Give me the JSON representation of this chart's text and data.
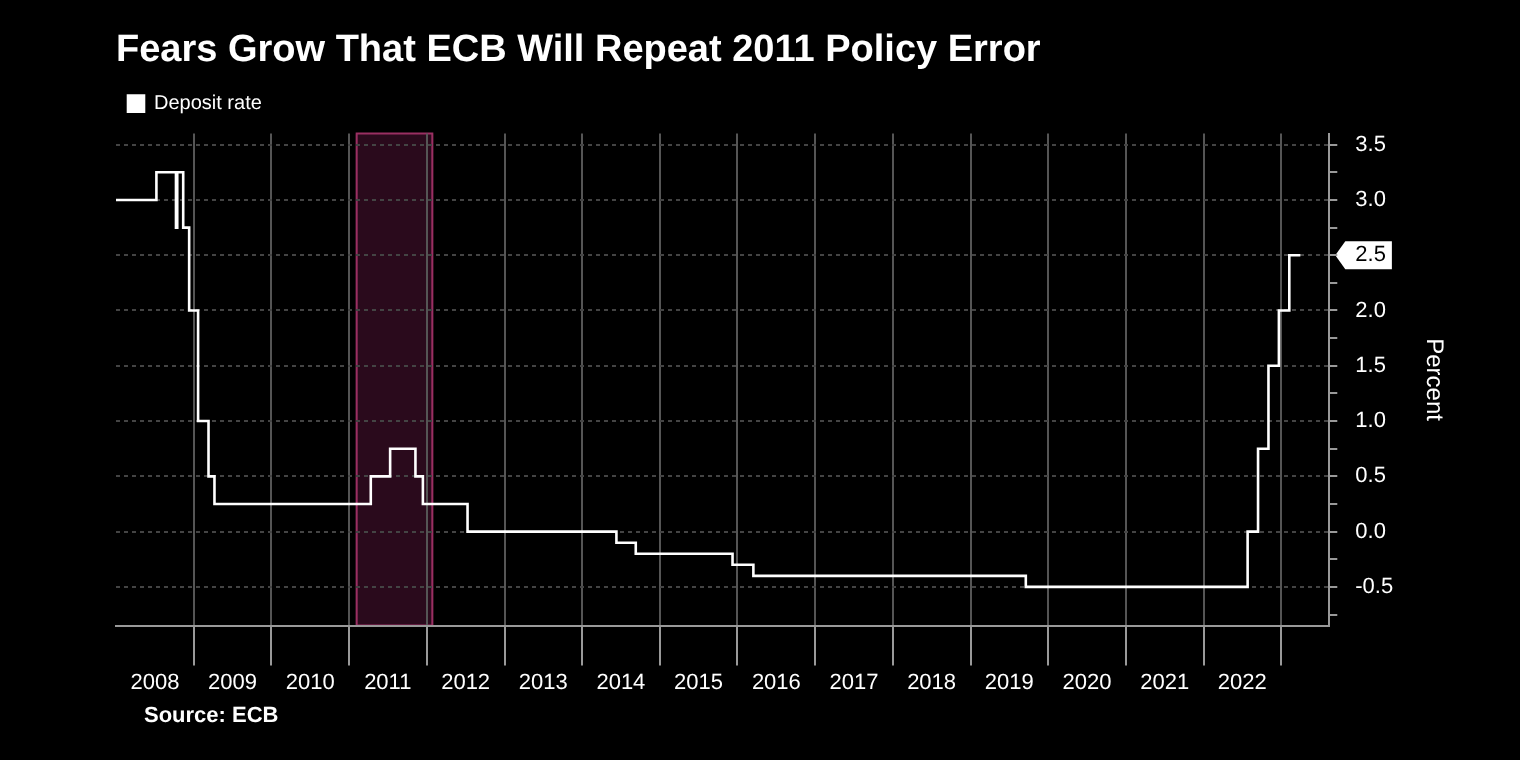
{
  "chart_data": {
    "type": "step",
    "title": "Fears Grow That ECB Will Repeat 2011 Policy Error",
    "ylabel": "Percent",
    "x": [
      "2008-01-01",
      "2008-07-09",
      "2008-10-09",
      "2008-10-15",
      "2008-11-12",
      "2008-12-10",
      "2009-01-21",
      "2009-03-11",
      "2009-04-08",
      "2011-04-13",
      "2011-07-13",
      "2011-11-09",
      "2011-12-14",
      "2012-07-11",
      "2014-06-11",
      "2014-09-10",
      "2015-12-09",
      "2016-03-16",
      "2019-09-18",
      "2022-07-27",
      "2022-09-14",
      "2022-11-02",
      "2022-12-21",
      "2023-02-08",
      "2023-04-01"
    ],
    "series": [
      {
        "name": "Deposit rate",
        "color": "#ffffff",
        "values": [
          3.0,
          3.25,
          2.75,
          3.25,
          2.75,
          2.0,
          1.0,
          0.5,
          0.25,
          0.5,
          0.75,
          0.5,
          0.25,
          0.0,
          -0.1,
          -0.2,
          -0.3,
          -0.4,
          -0.5,
          0.0,
          0.75,
          1.5,
          2.0,
          2.5,
          2.5
        ]
      }
    ],
    "xlim": [
      "2008-01-01",
      "2023-08-15"
    ],
    "xticks": [
      {
        "value": "2009-01-01",
        "label": null
      },
      {
        "value": "2010-01-01",
        "label": null
      },
      {
        "value": "2011-01-01",
        "label": null
      },
      {
        "value": "2012-01-01",
        "label": null
      },
      {
        "value": "2013-01-01",
        "label": null
      },
      {
        "value": "2014-01-01",
        "label": null
      },
      {
        "value": "2015-01-01",
        "label": null
      },
      {
        "value": "2016-01-01",
        "label": null
      },
      {
        "value": "2017-01-01",
        "label": null
      },
      {
        "value": "2018-01-01",
        "label": null
      },
      {
        "value": "2019-01-01",
        "label": null
      },
      {
        "value": "2020-01-01",
        "label": null
      },
      {
        "value": "2021-01-01",
        "label": null
      },
      {
        "value": "2022-01-01",
        "label": null
      },
      {
        "value": "2023-01-01",
        "label": null
      },
      {
        "value": "2008-07-02",
        "label": "2008"
      },
      {
        "value": "2009-07-02",
        "label": "2009"
      },
      {
        "value": "2010-07-02",
        "label": "2010"
      },
      {
        "value": "2011-07-02",
        "label": "2011"
      },
      {
        "value": "2012-07-02",
        "label": "2012"
      },
      {
        "value": "2013-07-02",
        "label": "2013"
      },
      {
        "value": "2014-07-02",
        "label": "2014"
      },
      {
        "value": "2015-07-02",
        "label": "2015"
      },
      {
        "value": "2016-07-02",
        "label": "2016"
      },
      {
        "value": "2017-07-02",
        "label": "2017"
      },
      {
        "value": "2018-07-02",
        "label": "2018"
      },
      {
        "value": "2019-07-02",
        "label": "2019"
      },
      {
        "value": "2020-07-02",
        "label": "2020"
      },
      {
        "value": "2021-07-02",
        "label": "2021"
      },
      {
        "value": "2022-07-02",
        "label": "2022"
      }
    ],
    "ylim": [
      -0.85,
      3.6
    ],
    "yticks": [
      {
        "value": -0.75,
        "label": null
      },
      {
        "value": -0.5,
        "label": "-0.5"
      },
      {
        "value": -0.25,
        "label": null
      },
      {
        "value": 0,
        "label": "0.0"
      },
      {
        "value": 0.25,
        "label": null
      },
      {
        "value": 0.5,
        "label": "0.5"
      },
      {
        "value": 0.75,
        "label": null
      },
      {
        "value": 1,
        "label": "1.0"
      },
      {
        "value": 1.25,
        "label": null
      },
      {
        "value": 1.5,
        "label": "1.5"
      },
      {
        "value": 1.75,
        "label": null
      },
      {
        "value": 2,
        "label": "2.0"
      },
      {
        "value": 2.25,
        "label": null
      },
      {
        "value": 2.5,
        "label": "2.5"
      },
      {
        "value": 2.75,
        "label": null
      },
      {
        "value": 3,
        "label": "3.0"
      },
      {
        "value": 3.25,
        "label": null
      },
      {
        "value": 3.5,
        "label": "3.5"
      }
    ],
    "bands": [
      {
        "axis": "x",
        "from": "2011-02-01",
        "to": "2012-02-01",
        "color": "#2a0a1c"
      }
    ],
    "grid": true,
    "legend": "top left",
    "annotations": [
      "Source: ECB"
    ]
  }
}
